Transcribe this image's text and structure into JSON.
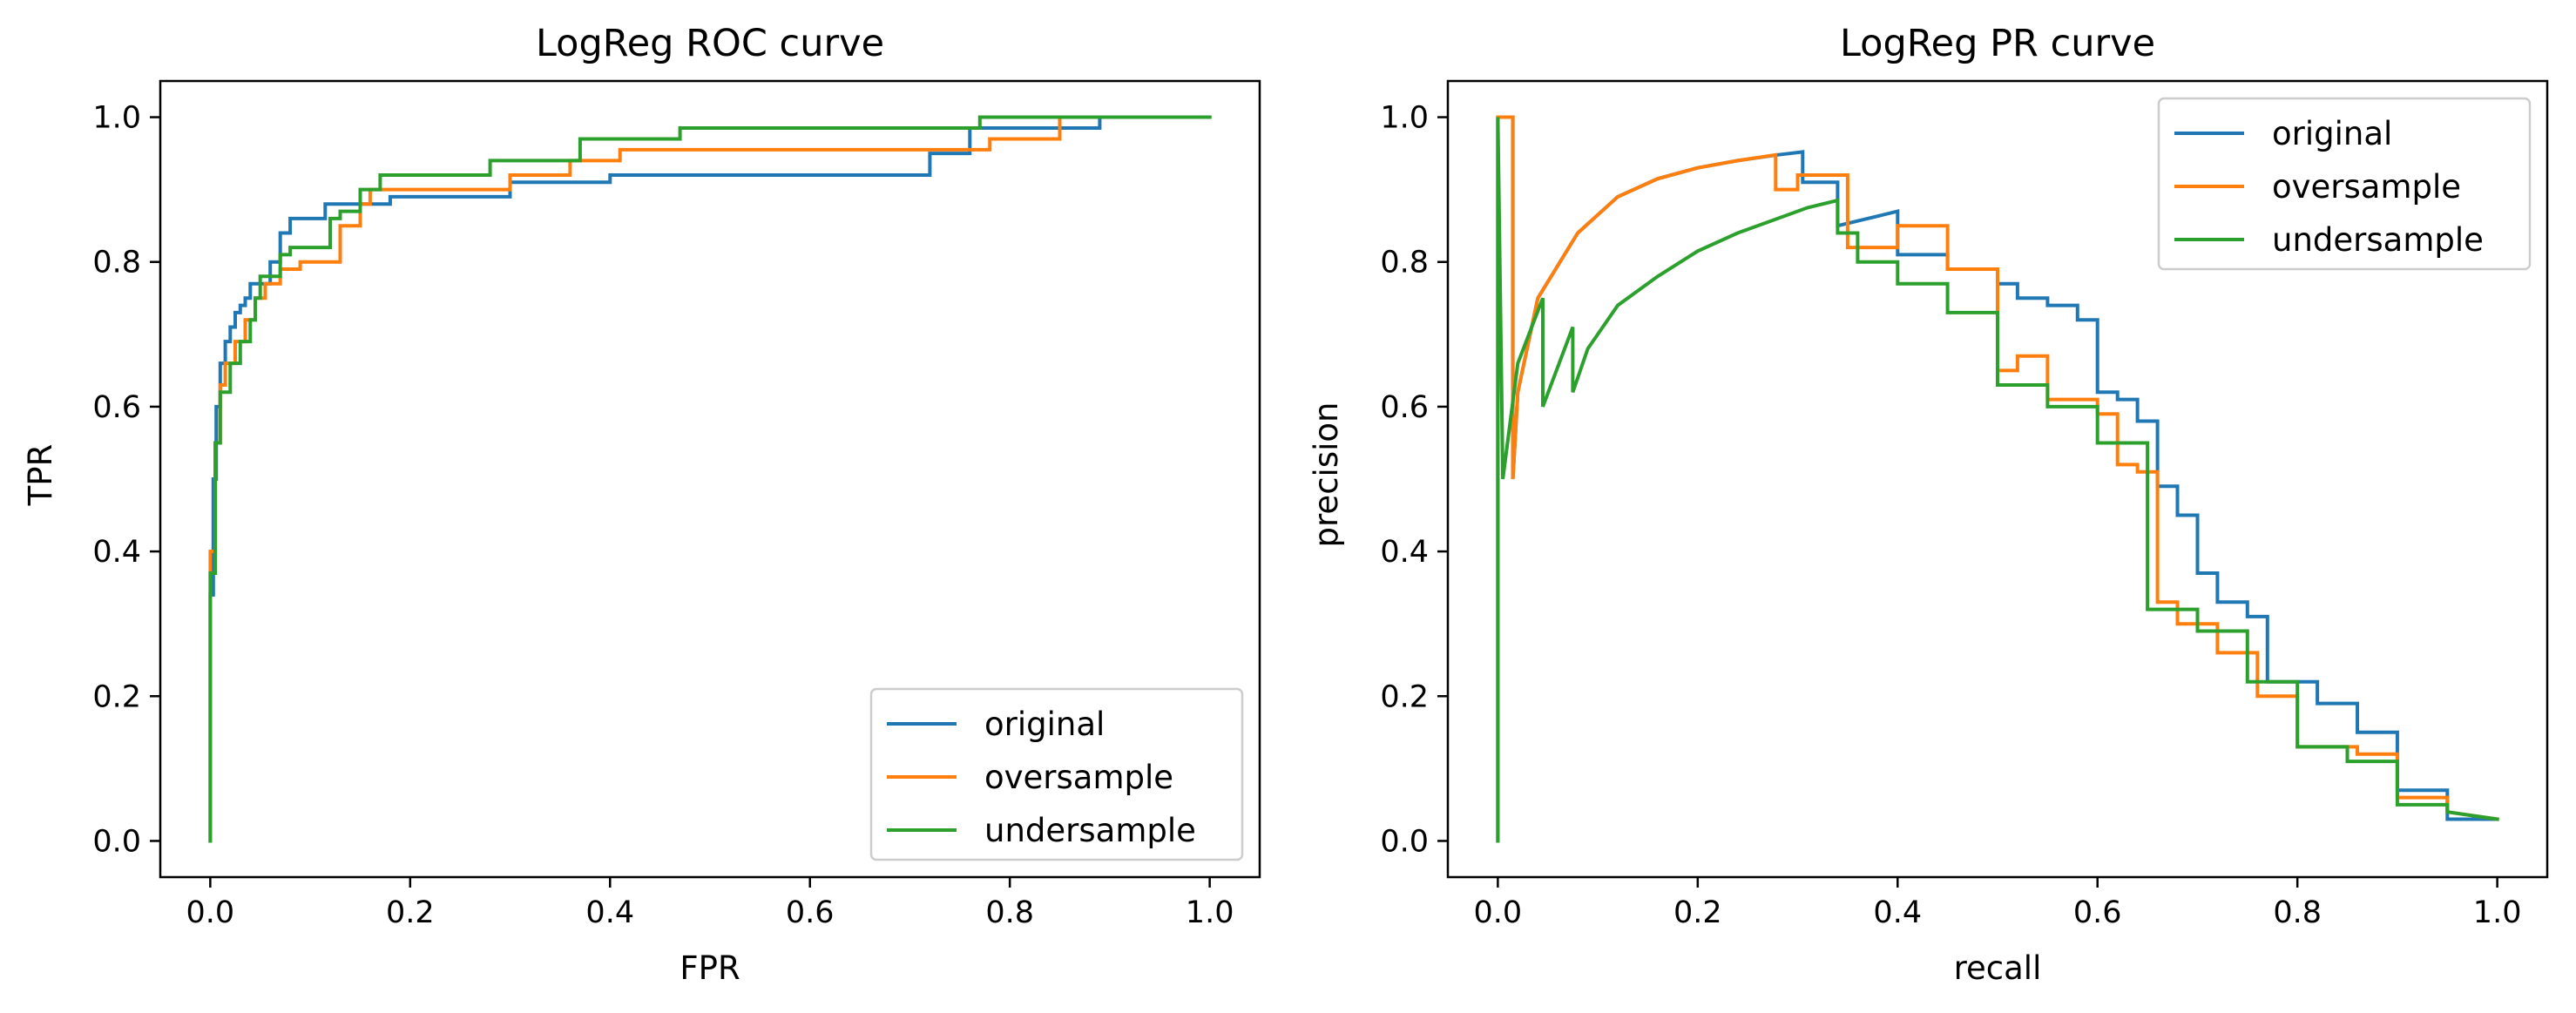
{
  "chart_data": [
    {
      "type": "line",
      "title": "LogReg ROC curve",
      "xlabel": "FPR",
      "ylabel": "TPR",
      "xlim": [
        -0.05,
        1.05
      ],
      "ylim": [
        -0.05,
        1.05
      ],
      "xticks": [
        0.0,
        0.2,
        0.4,
        0.6,
        0.8,
        1.0
      ],
      "yticks": [
        0.0,
        0.2,
        0.4,
        0.6,
        0.8,
        1.0
      ],
      "xtick_labels": [
        "0.0",
        "0.2",
        "0.4",
        "0.6",
        "0.8",
        "1.0"
      ],
      "ytick_labels": [
        "0.0",
        "0.2",
        "0.4",
        "0.6",
        "0.8",
        "1.0"
      ],
      "legend_position": "lower-right",
      "grid": false,
      "series": [
        {
          "name": "original",
          "color": "#1f77b4",
          "x": [
            0.0,
            0.0,
            0.003,
            0.003,
            0.006,
            0.006,
            0.01,
            0.01,
            0.015,
            0.015,
            0.02,
            0.02,
            0.025,
            0.025,
            0.03,
            0.03,
            0.035,
            0.035,
            0.04,
            0.04,
            0.06,
            0.06,
            0.07,
            0.07,
            0.08,
            0.08,
            0.115,
            0.115,
            0.18,
            0.18,
            0.3,
            0.3,
            0.4,
            0.4,
            0.72,
            0.72,
            0.76,
            0.76,
            0.89,
            0.89,
            1.0
          ],
          "y": [
            0.0,
            0.34,
            0.34,
            0.5,
            0.5,
            0.6,
            0.6,
            0.66,
            0.66,
            0.69,
            0.69,
            0.71,
            0.71,
            0.73,
            0.73,
            0.74,
            0.74,
            0.75,
            0.75,
            0.77,
            0.77,
            0.8,
            0.8,
            0.84,
            0.84,
            0.86,
            0.86,
            0.88,
            0.88,
            0.89,
            0.89,
            0.91,
            0.91,
            0.92,
            0.92,
            0.95,
            0.95,
            0.985,
            0.985,
            1.0,
            1.0
          ]
        },
        {
          "name": "oversample",
          "color": "#ff7f0e",
          "x": [
            0.0,
            0.0,
            0.005,
            0.005,
            0.01,
            0.01,
            0.015,
            0.015,
            0.025,
            0.025,
            0.035,
            0.035,
            0.045,
            0.045,
            0.055,
            0.055,
            0.07,
            0.07,
            0.09,
            0.09,
            0.13,
            0.13,
            0.15,
            0.15,
            0.16,
            0.16,
            0.3,
            0.3,
            0.36,
            0.36,
            0.41,
            0.41,
            0.78,
            0.78,
            0.85,
            0.85,
            1.0
          ],
          "y": [
            0.0,
            0.4,
            0.4,
            0.55,
            0.55,
            0.63,
            0.63,
            0.66,
            0.66,
            0.69,
            0.69,
            0.72,
            0.72,
            0.75,
            0.75,
            0.77,
            0.77,
            0.79,
            0.79,
            0.8,
            0.8,
            0.85,
            0.85,
            0.88,
            0.88,
            0.9,
            0.9,
            0.92,
            0.92,
            0.94,
            0.94,
            0.955,
            0.955,
            0.97,
            0.97,
            1.0,
            1.0
          ]
        },
        {
          "name": "undersample",
          "color": "#2ca02c",
          "x": [
            0.0,
            0.0,
            0.005,
            0.005,
            0.01,
            0.01,
            0.02,
            0.02,
            0.03,
            0.03,
            0.04,
            0.04,
            0.045,
            0.045,
            0.05,
            0.05,
            0.07,
            0.07,
            0.08,
            0.08,
            0.12,
            0.12,
            0.13,
            0.13,
            0.15,
            0.15,
            0.17,
            0.17,
            0.28,
            0.28,
            0.37,
            0.37,
            0.47,
            0.47,
            0.77,
            0.77,
            1.0
          ],
          "y": [
            0.0,
            0.37,
            0.37,
            0.55,
            0.55,
            0.62,
            0.62,
            0.66,
            0.66,
            0.69,
            0.69,
            0.72,
            0.72,
            0.75,
            0.75,
            0.78,
            0.78,
            0.81,
            0.81,
            0.82,
            0.82,
            0.86,
            0.86,
            0.87,
            0.87,
            0.9,
            0.9,
            0.92,
            0.92,
            0.94,
            0.94,
            0.97,
            0.97,
            0.985,
            0.985,
            1.0,
            1.0
          ]
        }
      ]
    },
    {
      "type": "line",
      "title": "LogReg PR curve",
      "xlabel": "recall",
      "ylabel": "precision",
      "xlim": [
        -0.05,
        1.05
      ],
      "ylim": [
        -0.05,
        1.05
      ],
      "xticks": [
        0.0,
        0.2,
        0.4,
        0.6,
        0.8,
        1.0
      ],
      "yticks": [
        0.0,
        0.2,
        0.4,
        0.6,
        0.8,
        1.0
      ],
      "xtick_labels": [
        "0.0",
        "0.2",
        "0.4",
        "0.6",
        "0.8",
        "1.0"
      ],
      "ytick_labels": [
        "0.0",
        "0.2",
        "0.4",
        "0.6",
        "0.8",
        "1.0"
      ],
      "legend_position": "upper-right",
      "grid": false,
      "series": [
        {
          "name": "original",
          "color": "#1f77b4",
          "x": [
            0.0,
            0.0,
            0.015,
            0.015,
            0.02,
            0.04,
            0.08,
            0.12,
            0.16,
            0.2,
            0.24,
            0.28,
            0.305,
            0.305,
            0.34,
            0.34,
            0.4,
            0.4,
            0.45,
            0.45,
            0.5,
            0.5,
            0.52,
            0.52,
            0.55,
            0.55,
            0.58,
            0.58,
            0.6,
            0.6,
            0.62,
            0.62,
            0.64,
            0.64,
            0.66,
            0.66,
            0.68,
            0.68,
            0.7,
            0.7,
            0.72,
            0.72,
            0.75,
            0.75,
            0.77,
            0.77,
            0.82,
            0.82,
            0.86,
            0.86,
            0.9,
            0.9,
            0.95,
            0.95,
            1.0
          ],
          "y": [
            0.0,
            1.0,
            1.0,
            0.5,
            0.62,
            0.75,
            0.84,
            0.89,
            0.915,
            0.93,
            0.94,
            0.948,
            0.952,
            0.91,
            0.91,
            0.85,
            0.87,
            0.81,
            0.81,
            0.79,
            0.79,
            0.77,
            0.77,
            0.75,
            0.75,
            0.74,
            0.74,
            0.72,
            0.72,
            0.62,
            0.62,
            0.61,
            0.61,
            0.58,
            0.58,
            0.49,
            0.49,
            0.45,
            0.45,
            0.37,
            0.37,
            0.33,
            0.33,
            0.31,
            0.31,
            0.22,
            0.22,
            0.19,
            0.19,
            0.15,
            0.15,
            0.07,
            0.07,
            0.03,
            0.03
          ]
        },
        {
          "name": "oversample",
          "color": "#ff7f0e",
          "x": [
            0.0,
            0.0,
            0.015,
            0.015,
            0.02,
            0.04,
            0.08,
            0.12,
            0.16,
            0.2,
            0.24,
            0.278,
            0.278,
            0.3,
            0.3,
            0.35,
            0.35,
            0.4,
            0.4,
            0.45,
            0.45,
            0.5,
            0.5,
            0.52,
            0.52,
            0.55,
            0.55,
            0.6,
            0.6,
            0.62,
            0.62,
            0.64,
            0.64,
            0.66,
            0.66,
            0.68,
            0.68,
            0.72,
            0.72,
            0.76,
            0.76,
            0.8,
            0.8,
            0.86,
            0.86,
            0.9,
            0.9,
            0.95,
            0.95,
            1.0
          ],
          "y": [
            0.0,
            1.0,
            1.0,
            0.5,
            0.62,
            0.75,
            0.84,
            0.89,
            0.915,
            0.93,
            0.94,
            0.948,
            0.9,
            0.9,
            0.92,
            0.92,
            0.82,
            0.82,
            0.85,
            0.85,
            0.79,
            0.79,
            0.65,
            0.65,
            0.67,
            0.67,
            0.61,
            0.61,
            0.59,
            0.59,
            0.52,
            0.52,
            0.51,
            0.51,
            0.33,
            0.33,
            0.3,
            0.3,
            0.26,
            0.26,
            0.2,
            0.2,
            0.13,
            0.13,
            0.12,
            0.12,
            0.06,
            0.06,
            0.04,
            0.03
          ]
        },
        {
          "name": "undersample",
          "color": "#2ca02c",
          "x": [
            0.0,
            0.0,
            0.005,
            0.02,
            0.045,
            0.045,
            0.075,
            0.075,
            0.09,
            0.12,
            0.16,
            0.2,
            0.24,
            0.28,
            0.31,
            0.34,
            0.34,
            0.36,
            0.36,
            0.4,
            0.4,
            0.45,
            0.45,
            0.5,
            0.5,
            0.55,
            0.55,
            0.6,
            0.6,
            0.65,
            0.65,
            0.7,
            0.7,
            0.75,
            0.75,
            0.8,
            0.8,
            0.85,
            0.85,
            0.9,
            0.9,
            0.95,
            0.95,
            1.0
          ],
          "y": [
            0.0,
            1.0,
            0.5,
            0.66,
            0.75,
            0.6,
            0.71,
            0.62,
            0.68,
            0.74,
            0.78,
            0.815,
            0.84,
            0.86,
            0.875,
            0.885,
            0.84,
            0.84,
            0.8,
            0.8,
            0.77,
            0.77,
            0.73,
            0.73,
            0.63,
            0.63,
            0.6,
            0.6,
            0.55,
            0.55,
            0.32,
            0.32,
            0.29,
            0.29,
            0.22,
            0.22,
            0.13,
            0.13,
            0.11,
            0.11,
            0.05,
            0.05,
            0.04,
            0.03
          ]
        }
      ]
    }
  ]
}
